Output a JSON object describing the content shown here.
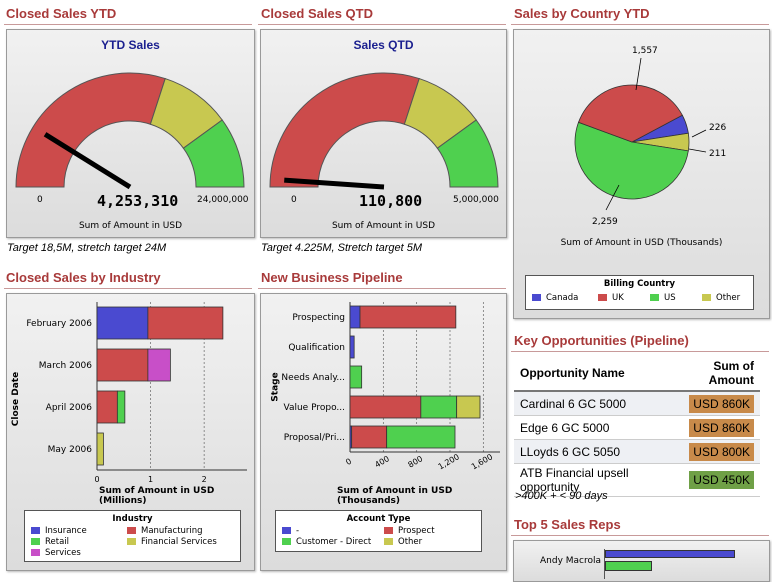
{
  "panels": {
    "ytd": {
      "title": "Closed Sales YTD",
      "gauge_title": "YTD Sales",
      "value": "4,253,310",
      "min": "0",
      "max": "24,000,000",
      "caption": "Sum of Amount in USD",
      "note": "Target 18,5M, stretch target 24M"
    },
    "qtd": {
      "title": "Closed Sales QTD",
      "gauge_title": "Sales QTD",
      "value": "110,800",
      "min": "0",
      "max": "5,000,000",
      "caption": "Sum of Amount in USD",
      "note": "Target 4.225M, Stretch target 5M"
    },
    "country": {
      "title": "Sales by Country YTD",
      "caption": "Sum of Amount in USD (Thousands)",
      "legend_title": "Billing Country",
      "labels": {
        "uk": "1,557",
        "canada": "226",
        "other": "211",
        "us": "2,259"
      }
    },
    "industry": {
      "title": "Closed Sales by Industry",
      "ylabel": "Close Date",
      "xlabel": "Sum of Amount in USD (Millions)",
      "legend_title": "Industry"
    },
    "pipeline": {
      "title": "New Business Pipeline",
      "ylabel": "Stage",
      "xlabel": "Sum of Amount in USD (Thousands)",
      "legend_title": "Account Type"
    },
    "opps": {
      "title": "Key Opportunities (Pipeline)",
      "col1": "Opportunity Name",
      "col2": "Sum of Amount",
      "rows": [
        {
          "name": "Cardinal 6 GC 5000",
          "amount": "USD 860K",
          "color": "#c88a4a"
        },
        {
          "name": "Edge 6 GC 5000",
          "amount": "USD 860K",
          "color": "#c88a4a"
        },
        {
          "name": "LLoyds 6 GC 5050",
          "amount": "USD 800K",
          "color": "#c88a4a"
        },
        {
          "name": "ATB Financial upsell opportunity",
          "amount": "USD 450K",
          "color": "#6fa046"
        }
      ],
      "note": ">400K + < 90 days"
    },
    "reps": {
      "title": "Top 5 Sales Reps",
      "first": "Andy Macrola"
    }
  },
  "gauges": {
    "ytd": {
      "fraction": 0.177
    },
    "qtd": {
      "fraction": 0.022
    }
  },
  "chart_data": [
    {
      "type": "pie",
      "title": "Sales by Country YTD",
      "categories": [
        "Canada",
        "UK",
        "US",
        "Other"
      ],
      "values": [
        226,
        1557,
        2259,
        211
      ],
      "colors": [
        "#4a4ad0",
        "#cc4b4b",
        "#4fd04f",
        "#c8c850"
      ]
    },
    {
      "type": "bar",
      "title": "Closed Sales by Industry",
      "orientation": "horizontal",
      "stacked": true,
      "categories": [
        "February 2006",
        "March 2006",
        "April 2006",
        "May 2006"
      ],
      "series": [
        {
          "name": "Insurance",
          "color": "#4a4ad0",
          "values": [
            0.95,
            0,
            0,
            0
          ]
        },
        {
          "name": "Manufacturing",
          "color": "#cc4b4b",
          "values": [
            1.4,
            0.95,
            0.38,
            0
          ]
        },
        {
          "name": "Retail",
          "color": "#4fd04f",
          "values": [
            0,
            0,
            0.14,
            0
          ]
        },
        {
          "name": "Financial Services",
          "color": "#c8c850",
          "values": [
            0,
            0,
            0,
            0.12
          ]
        },
        {
          "name": "Services",
          "color": "#c84fc8",
          "values": [
            0,
            0.42,
            0,
            0
          ]
        }
      ],
      "xlabel": "Sum of Amount in USD (Millions)",
      "ylabel": "Close Date",
      "ticks": [
        "0",
        "1",
        "2"
      ],
      "xlim": [
        0,
        2.8
      ]
    },
    {
      "type": "bar",
      "title": "New Business Pipeline",
      "orientation": "horizontal",
      "stacked": true,
      "categories": [
        "Prospecting",
        "Qualification",
        "Needs Analy...",
        "Value Propo...",
        "Proposal/Pri..."
      ],
      "series": [
        {
          "name": "-",
          "color": "#4a4ad0",
          "values": [
            120,
            50,
            0,
            0,
            20
          ]
        },
        {
          "name": "Prospect",
          "color": "#cc4b4b",
          "values": [
            1150,
            0,
            0,
            850,
            420
          ]
        },
        {
          "name": "Customer - Direct",
          "color": "#4fd04f",
          "values": [
            0,
            0,
            140,
            430,
            820
          ]
        },
        {
          "name": "Other",
          "color": "#c8c850",
          "values": [
            0,
            0,
            0,
            280,
            0
          ]
        }
      ],
      "xlabel": "Sum of Amount in USD (Thousands)",
      "ylabel": "Stage",
      "ticks": [
        "0",
        "400",
        "800",
        "1,200",
        "1,600"
      ],
      "xlim": [
        0,
        1800
      ]
    }
  ],
  "legends": {
    "country": [
      {
        "name": "Canada",
        "color": "#4a4ad0"
      },
      {
        "name": "UK",
        "color": "#cc4b4b"
      },
      {
        "name": "US",
        "color": "#4fd04f"
      },
      {
        "name": "Other",
        "color": "#c8c850"
      }
    ],
    "industry": [
      {
        "name": "Insurance",
        "color": "#4a4ad0"
      },
      {
        "name": "Manufacturing",
        "color": "#cc4b4b"
      },
      {
        "name": "Retail",
        "color": "#4fd04f"
      },
      {
        "name": "Financial Services",
        "color": "#c8c850"
      },
      {
        "name": "Services",
        "color": "#c84fc8"
      }
    ],
    "pipeline": [
      {
        "name": "-",
        "color": "#4a4ad0"
      },
      {
        "name": "Prospect",
        "color": "#cc4b4b"
      },
      {
        "name": "Customer - Direct",
        "color": "#4fd04f"
      },
      {
        "name": "Other",
        "color": "#c8c850"
      }
    ]
  }
}
